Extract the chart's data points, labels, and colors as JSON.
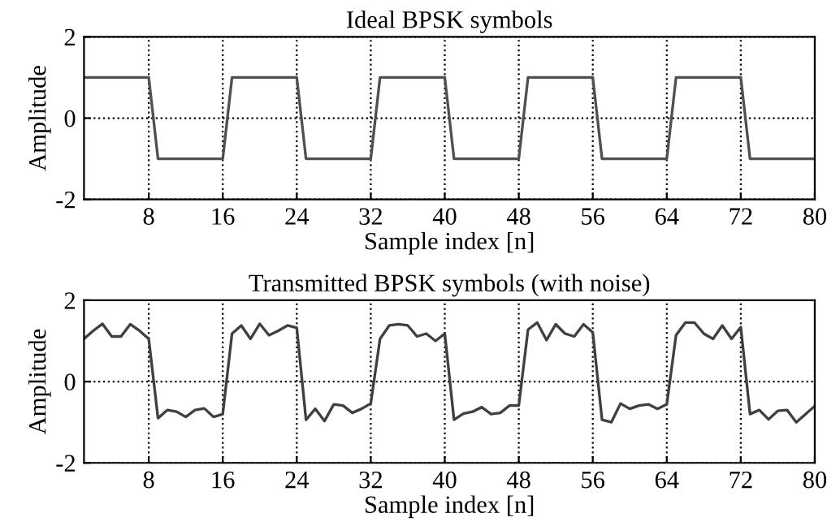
{
  "chart_data": [
    {
      "type": "line",
      "title": "Ideal BPSK symbols",
      "xlabel": "Sample index [n]",
      "ylabel": "Amplitude",
      "x": [
        1,
        2,
        3,
        4,
        5,
        6,
        7,
        8,
        9,
        10,
        11,
        12,
        13,
        14,
        15,
        16,
        17,
        18,
        19,
        20,
        21,
        22,
        23,
        24,
        25,
        26,
        27,
        28,
        29,
        30,
        31,
        32,
        33,
        34,
        35,
        36,
        37,
        38,
        39,
        40,
        41,
        42,
        43,
        44,
        45,
        46,
        47,
        48,
        49,
        50,
        51,
        52,
        53,
        54,
        55,
        56,
        57,
        58,
        59,
        60,
        61,
        62,
        63,
        64,
        65,
        66,
        67,
        68,
        69,
        70,
        71,
        72,
        73,
        74,
        75,
        76,
        77,
        78,
        79,
        80
      ],
      "series": [
        {
          "color": "#505050",
          "values": [
            1,
            1,
            1,
            1,
            1,
            1,
            1,
            1,
            -1,
            -1,
            -1,
            -1,
            -1,
            -1,
            -1,
            -1,
            1,
            1,
            1,
            1,
            1,
            1,
            1,
            1,
            -1,
            -1,
            -1,
            -1,
            -1,
            -1,
            -1,
            -1,
            1,
            1,
            1,
            1,
            1,
            1,
            1,
            1,
            -1,
            -1,
            -1,
            -1,
            -1,
            -1,
            -1,
            -1,
            1,
            1,
            1,
            1,
            1,
            1,
            1,
            1,
            -1,
            -1,
            -1,
            -1,
            -1,
            -1,
            -1,
            -1,
            1,
            1,
            1,
            1,
            1,
            1,
            1,
            1,
            -1,
            -1,
            -1,
            -1,
            -1,
            -1,
            -1,
            -1
          ]
        }
      ],
      "xlim": [
        1,
        80
      ],
      "ylim": [
        -2,
        2
      ],
      "xticks": [
        8,
        16,
        24,
        32,
        40,
        48,
        56,
        64,
        72,
        80
      ],
      "yticks": [
        -2,
        0,
        2
      ],
      "grid": true,
      "line_style": "solid"
    },
    {
      "type": "line",
      "title": "Transmitted BPSK symbols (with noise)",
      "xlabel": "Sample index [n]",
      "ylabel": "Amplitude",
      "x": [
        1,
        2,
        3,
        4,
        5,
        6,
        7,
        8,
        9,
        10,
        11,
        12,
        13,
        14,
        15,
        16,
        17,
        18,
        19,
        20,
        21,
        22,
        23,
        24,
        25,
        26,
        27,
        28,
        29,
        30,
        31,
        32,
        33,
        34,
        35,
        36,
        37,
        38,
        39,
        40,
        41,
        42,
        43,
        44,
        45,
        46,
        47,
        48,
        49,
        50,
        51,
        52,
        53,
        54,
        55,
        56,
        57,
        58,
        59,
        60,
        61,
        62,
        63,
        64,
        65,
        66,
        67,
        68,
        69,
        70,
        71,
        72,
        73,
        74,
        75,
        76,
        77,
        78,
        79,
        80
      ],
      "series": [
        {
          "color": "#404040",
          "values": [
            1.05,
            1.25,
            1.42,
            1.11,
            1.11,
            1.41,
            1.25,
            1.05,
            -0.9,
            -0.7,
            -0.74,
            -0.87,
            -0.7,
            -0.66,
            -0.87,
            -0.8,
            1.18,
            1.38,
            1.05,
            1.42,
            1.14,
            1.25,
            1.38,
            1.32,
            -0.94,
            -0.67,
            -0.97,
            -0.56,
            -0.59,
            -0.77,
            -0.67,
            -0.54,
            1.05,
            1.38,
            1.41,
            1.38,
            1.11,
            1.18,
            1.0,
            1.18,
            -0.94,
            -0.79,
            -0.74,
            -0.63,
            -0.8,
            -0.77,
            -0.59,
            -0.59,
            1.28,
            1.45,
            1.02,
            1.41,
            1.18,
            1.11,
            1.41,
            1.21,
            -0.94,
            -1.0,
            -0.54,
            -0.67,
            -0.59,
            -0.56,
            -0.67,
            -0.56,
            1.14,
            1.45,
            1.45,
            1.18,
            1.05,
            1.38,
            1.05,
            1.34,
            -0.8,
            -0.7,
            -0.93,
            -0.72,
            -0.7,
            -1.0,
            -0.8,
            -0.6
          ]
        }
      ],
      "xlim": [
        1,
        80
      ],
      "ylim": [
        -2,
        2
      ],
      "xticks": [
        8,
        16,
        24,
        32,
        40,
        48,
        56,
        64,
        72,
        80
      ],
      "yticks": [
        -2,
        0,
        2
      ],
      "grid": true,
      "line_style": "solid"
    }
  ]
}
